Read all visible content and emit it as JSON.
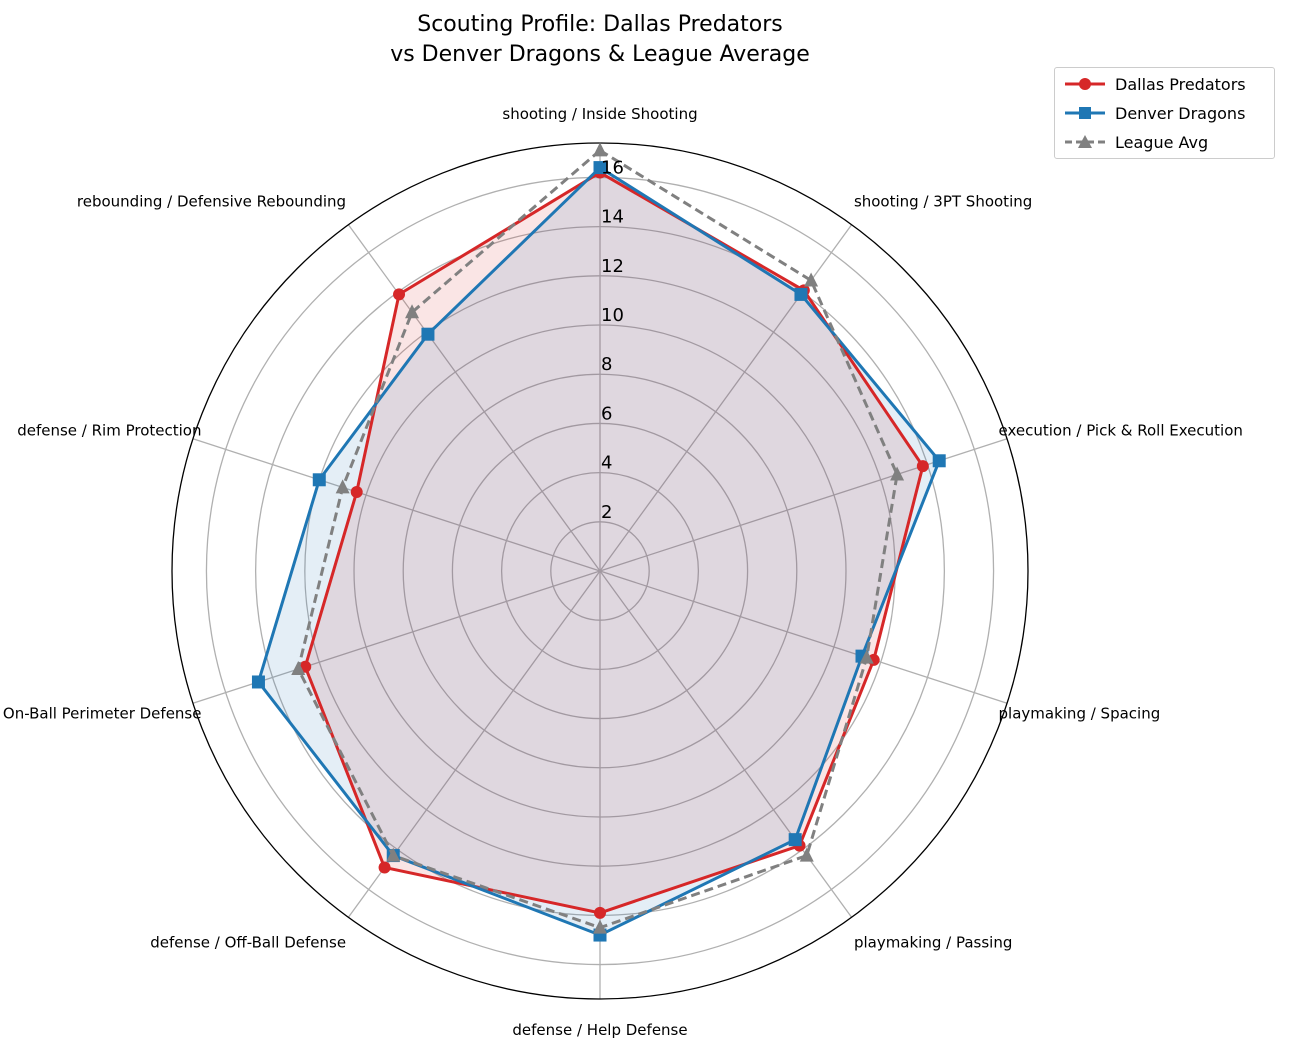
{
  "chart_data": {
    "type": "radar",
    "title": "Scouting Profile: Dallas Predators\nvs Denver Dragons & League Average",
    "title_lines": [
      "Scouting Profile: Dallas Predators",
      "vs Denver Dragons & League Average"
    ],
    "categories": [
      "shooting / Inside Shooting",
      "shooting / 3PT Shooting",
      "execution / Pick & Roll Execution",
      "playmaking / Spacing",
      "playmaking / Passing",
      "defense / Help Defense",
      "defense / Off-Ball Defense",
      "defense / On-Ball Perimeter Defense",
      "defense / Rim Protection",
      "rebounding / Defensive Rebounding"
    ],
    "radial_ticks": [
      2,
      4,
      6,
      8,
      10,
      12,
      14,
      16
    ],
    "rlim": [
      0,
      17.4
    ],
    "grid": true,
    "legend_position": "top-right, outside",
    "series": [
      {
        "name": "Dallas Predators",
        "color": "#d62728",
        "marker": "circle",
        "linestyle": "solid",
        "filled": true,
        "values": [
          16.2,
          14.1,
          13.8,
          11.7,
          13.8,
          13.9,
          14.9,
          12.6,
          10.4,
          13.9
        ]
      },
      {
        "name": "Denver Dragons",
        "color": "#1f77b4",
        "marker": "square",
        "linestyle": "solid",
        "filled": true,
        "values": [
          16.4,
          13.9,
          14.5,
          11.2,
          13.5,
          14.8,
          14.3,
          14.6,
          12.0,
          11.9
        ]
      },
      {
        "name": "League Avg",
        "color": "#808080",
        "marker": "triangle",
        "linestyle": "dashed",
        "filled": false,
        "values": [
          17.1,
          14.6,
          12.7,
          11.4,
          14.3,
          14.5,
          14.3,
          12.9,
          11.0,
          13.0
        ]
      }
    ]
  }
}
